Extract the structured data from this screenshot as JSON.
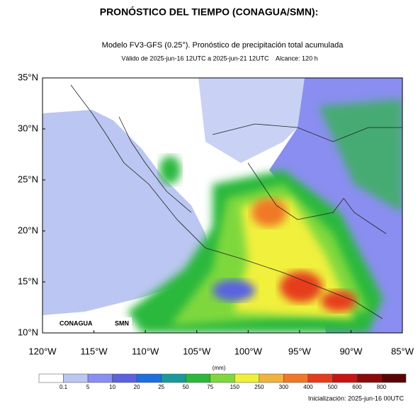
{
  "header": {
    "title": "PRONÓSTICO DEL TIEMPO (CONAGUA/SMN):"
  },
  "map": {
    "title": "Modelo FV3-GFS (0.25°). Pronóstico de precipitación total acumulada",
    "subtitle": "Válido de 2025-jun-16 12UTC a 2025-jun-21 12UTC    Alcance: 120 h",
    "lat_labels": [
      "35°N",
      "30°N",
      "25°N",
      "20°N",
      "15°N",
      "10°N"
    ],
    "lon_labels": [
      "120°W",
      "115°W",
      "110°W",
      "105°W",
      "100°W",
      "95°W",
      "90°W",
      "85°W"
    ],
    "logos": [
      "CONAGUA",
      "SMN"
    ]
  },
  "colorbar": {
    "unit": "(mm)",
    "labels": [
      "0.1",
      "5",
      "10",
      "20",
      "25",
      "50",
      "75",
      "150",
      "250",
      "300",
      "400",
      "500",
      "600",
      "800"
    ],
    "colors": [
      "#ffffff",
      "#bcc6f2",
      "#8a8ef0",
      "#5a62e0",
      "#1e6ee0",
      "#1a9a9a",
      "#2cb83c",
      "#7ed83c",
      "#f0f03c",
      "#f0b43c",
      "#f07828",
      "#e63c1e",
      "#c81414",
      "#8c0a0a",
      "#5a0505"
    ]
  },
  "footer": {
    "text": "Inicialización: 2025-jun-16 00UTC"
  }
}
